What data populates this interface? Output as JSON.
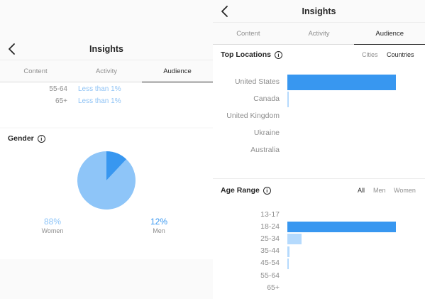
{
  "left": {
    "header": {
      "title": "Insights"
    },
    "tabs": [
      {
        "label": "Content",
        "active": false
      },
      {
        "label": "Activity",
        "active": false
      },
      {
        "label": "Audience",
        "active": true
      }
    ],
    "age_rows": [
      {
        "range": "55-64",
        "value": "Less than 1%"
      },
      {
        "range": "65+",
        "value": "Less than 1%"
      }
    ],
    "gender": {
      "title": "Gender",
      "women": {
        "percent": "88%",
        "label": "Women",
        "fraction": 0.88,
        "color": "#8ec5f8"
      },
      "men": {
        "percent": "12%",
        "label": "Men",
        "fraction": 0.12,
        "color": "#3897f0"
      }
    }
  },
  "right": {
    "header": {
      "title": "Insights"
    },
    "tabs": [
      {
        "label": "Content",
        "active": false
      },
      {
        "label": "Activity",
        "active": false
      },
      {
        "label": "Audience",
        "active": true
      }
    ],
    "top_locations": {
      "title": "Top Locations",
      "filters": [
        {
          "label": "Cities",
          "active": false
        },
        {
          "label": "Countries",
          "active": true
        }
      ]
    },
    "age_range": {
      "title": "Age Range",
      "filters": [
        {
          "label": "All",
          "active": true
        },
        {
          "label": "Men",
          "active": false
        },
        {
          "label": "Women",
          "active": false
        }
      ]
    }
  },
  "chart_data": [
    {
      "type": "bar",
      "title": "Top Locations",
      "categories": [
        "United States",
        "Canada",
        "United Kingdom",
        "Ukraine",
        "Australia"
      ],
      "values": [
        0.99,
        0.01,
        0,
        0,
        0
      ],
      "colors": [
        "#3897f0",
        "#b5dafd",
        "#b5dafd",
        "#b5dafd",
        "#b5dafd"
      ]
    },
    {
      "type": "bar",
      "title": "Age Range",
      "categories": [
        "13-17",
        "18-24",
        "25-34",
        "35-44",
        "45-54",
        "55-64",
        "65+"
      ],
      "values": [
        0,
        0.99,
        0.13,
        0.02,
        0.01,
        0,
        0
      ],
      "colors": [
        "#b5dafd",
        "#3897f0",
        "#b5dafd",
        "#b5dafd",
        "#b5dafd",
        "#b5dafd",
        "#b5dafd"
      ]
    }
  ]
}
